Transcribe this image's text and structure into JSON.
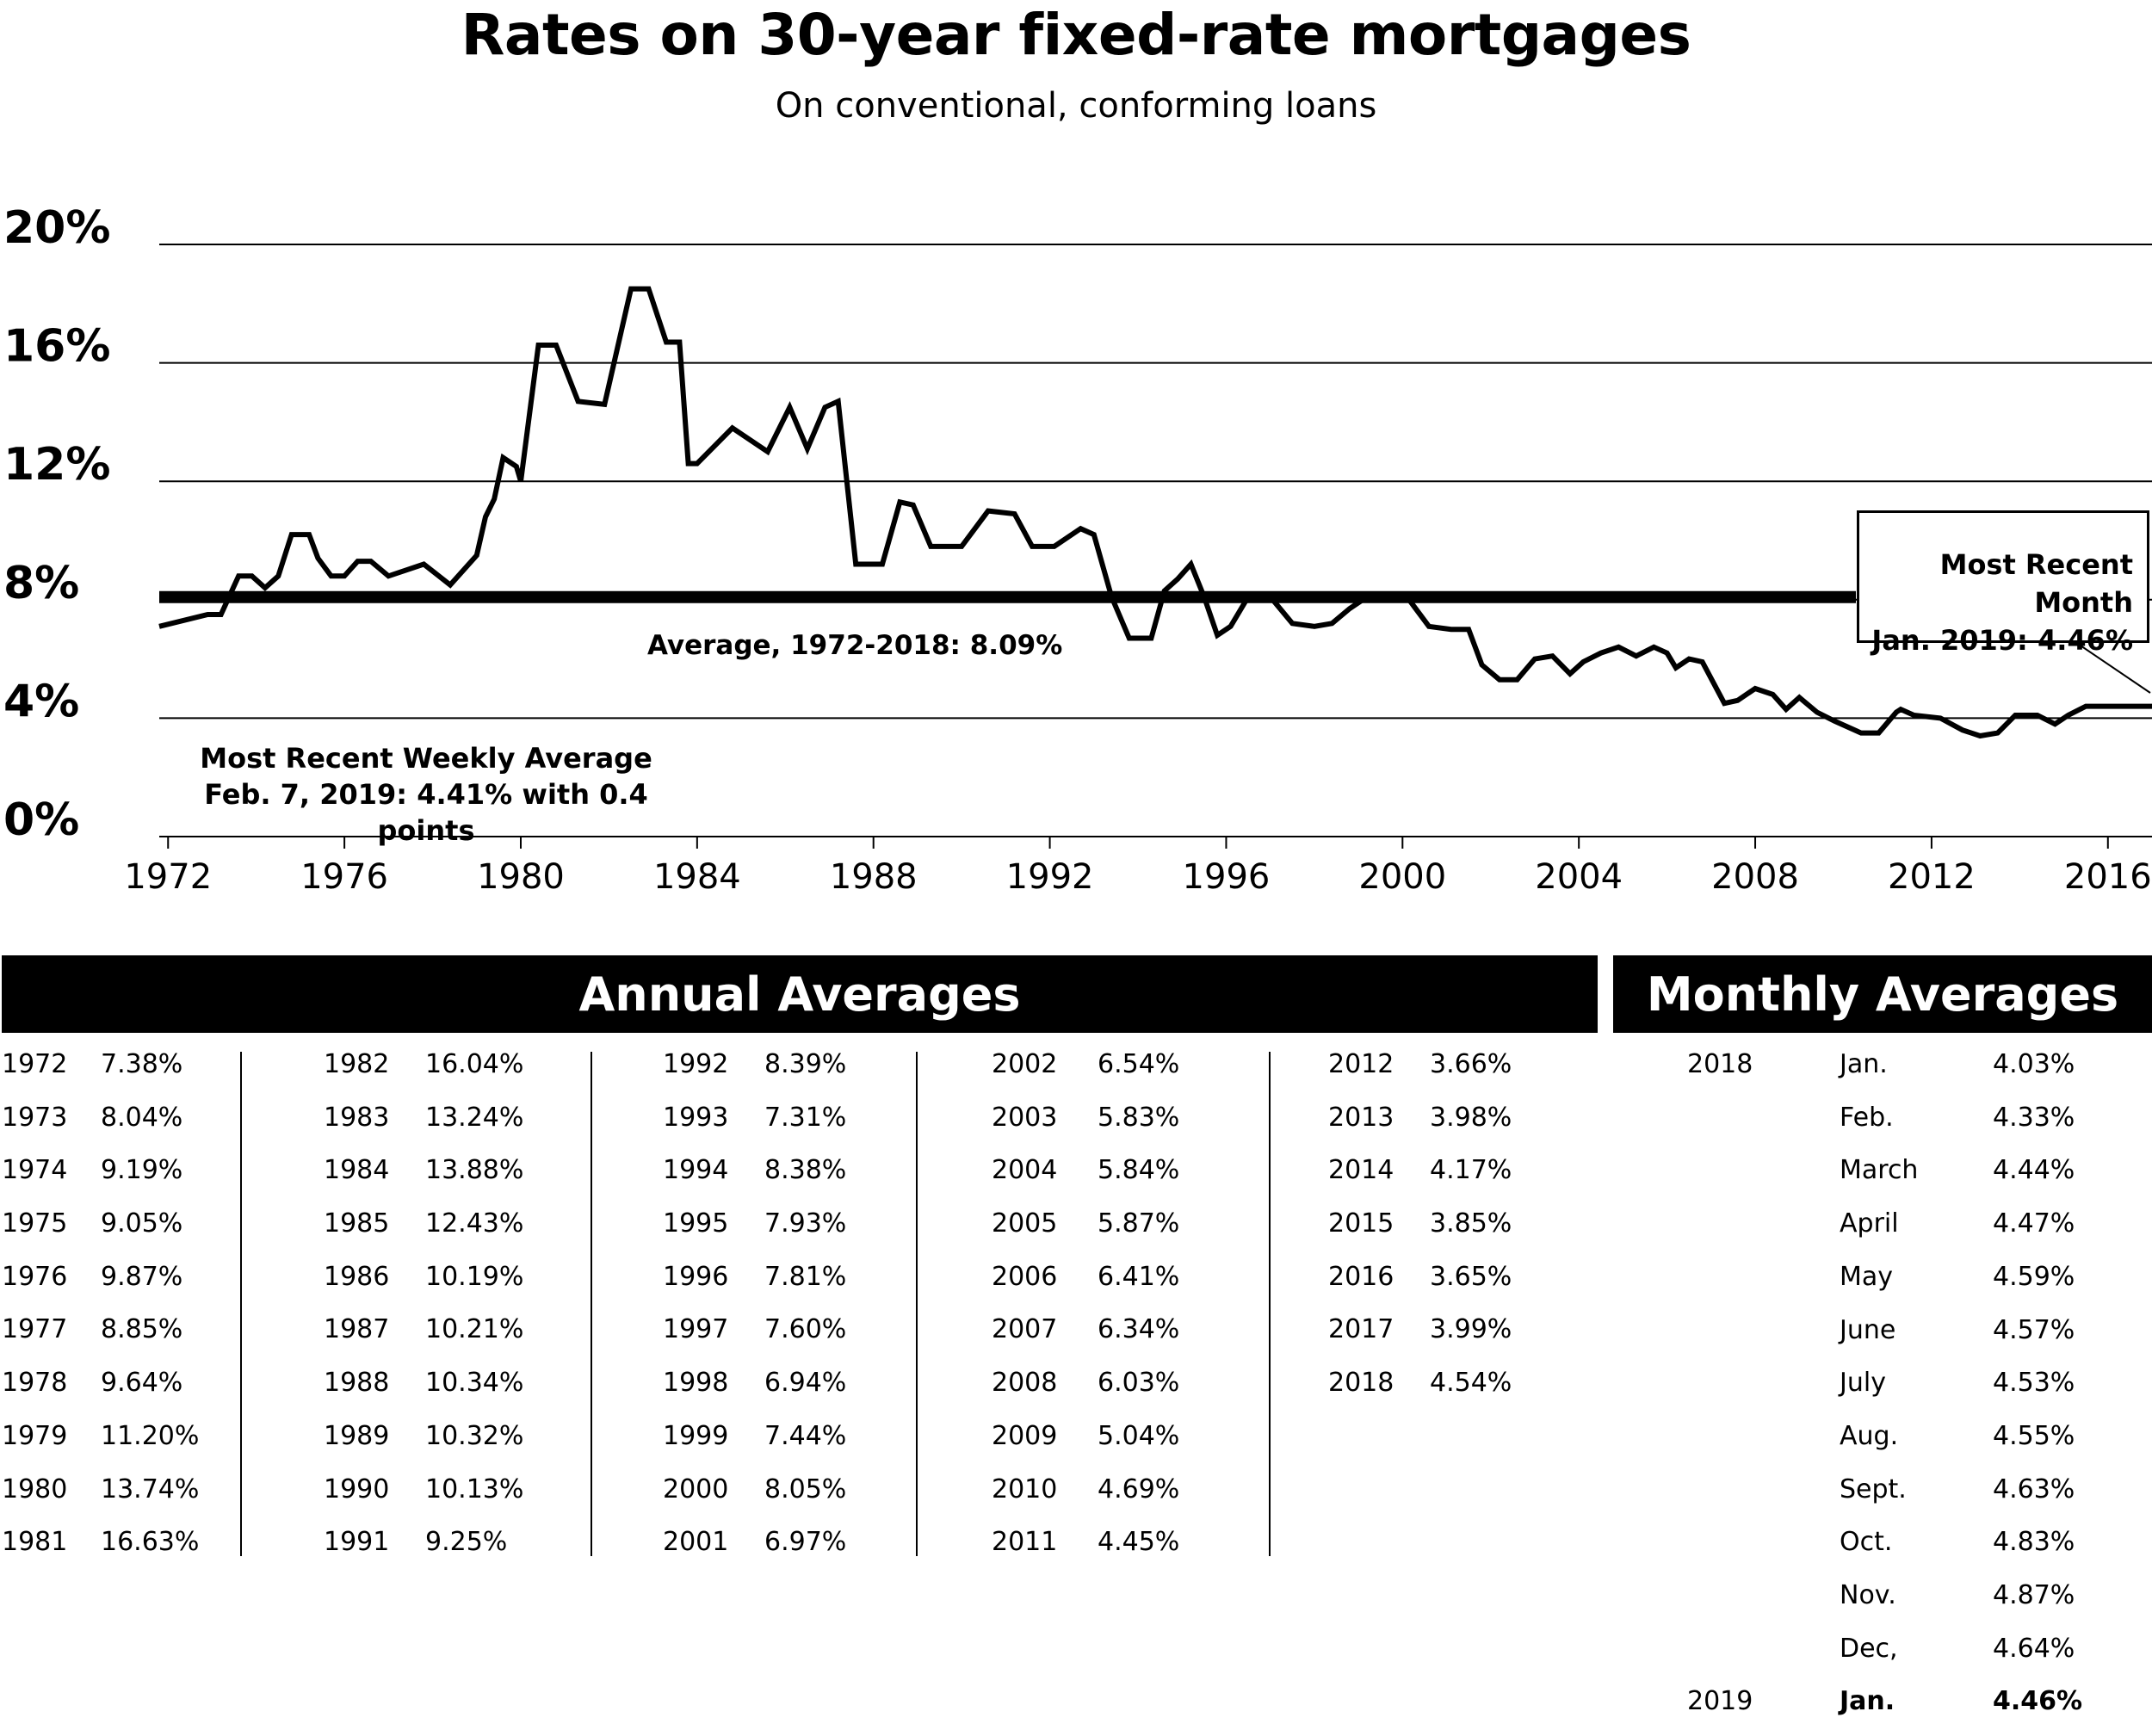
{
  "title": "Rates on 30-year fixed-rate mortgages",
  "subtitle": "On conventional, conforming loans",
  "callout": {
    "line1": "Most Recent Month",
    "line2": "Jan. 2019: 4.46%"
  },
  "average_label": "Average, 1972-2018: 8.09%",
  "weekly": {
    "line1": "Most Recent Weekly Average",
    "line2": "Feb. 7, 2019: 4.41% with 0.4 points"
  },
  "annual_header": "Annual Averages",
  "monthly_header": "Monthly Averages",
  "annual_columns": [
    [
      [
        "1972",
        "7.38%"
      ],
      [
        "1973",
        "8.04%"
      ],
      [
        "1974",
        "9.19%"
      ],
      [
        "1975",
        "9.05%"
      ],
      [
        "1976",
        "9.87%"
      ],
      [
        "1977",
        "8.85%"
      ],
      [
        "1978",
        "9.64%"
      ],
      [
        "1979",
        "11.20%"
      ],
      [
        "1980",
        "13.74%"
      ],
      [
        "1981",
        "16.63%"
      ]
    ],
    [
      [
        "1982",
        "16.04%"
      ],
      [
        "1983",
        "13.24%"
      ],
      [
        "1984",
        "13.88%"
      ],
      [
        "1985",
        "12.43%"
      ],
      [
        "1986",
        "10.19%"
      ],
      [
        "1987",
        "10.21%"
      ],
      [
        "1988",
        "10.34%"
      ],
      [
        "1989",
        "10.32%"
      ],
      [
        "1990",
        "10.13%"
      ],
      [
        "1991",
        "9.25%"
      ]
    ],
    [
      [
        "1992",
        "8.39%"
      ],
      [
        "1993",
        "7.31%"
      ],
      [
        "1994",
        "8.38%"
      ],
      [
        "1995",
        "7.93%"
      ],
      [
        "1996",
        "7.81%"
      ],
      [
        "1997",
        "7.60%"
      ],
      [
        "1998",
        "6.94%"
      ],
      [
        "1999",
        "7.44%"
      ],
      [
        "2000",
        "8.05%"
      ],
      [
        "2001",
        "6.97%"
      ]
    ],
    [
      [
        "2002",
        "6.54%"
      ],
      [
        "2003",
        "5.83%"
      ],
      [
        "2004",
        "5.84%"
      ],
      [
        "2005",
        "5.87%"
      ],
      [
        "2006",
        "6.41%"
      ],
      [
        "2007",
        "6.34%"
      ],
      [
        "2008",
        "6.03%"
      ],
      [
        "2009",
        "5.04%"
      ],
      [
        "2010",
        "4.69%"
      ],
      [
        "2011",
        "4.45%"
      ]
    ],
    [
      [
        "2012",
        "3.66%"
      ],
      [
        "2013",
        "3.98%"
      ],
      [
        "2014",
        "4.17%"
      ],
      [
        "2015",
        "3.85%"
      ],
      [
        "2016",
        "3.65%"
      ],
      [
        "2017",
        "3.99%"
      ],
      [
        "2018",
        "4.54%"
      ]
    ]
  ],
  "monthly_rows": [
    [
      "2018",
      "Jan.",
      "4.03%"
    ],
    [
      "",
      "Feb.",
      "4.33%"
    ],
    [
      "",
      "March",
      "4.44%"
    ],
    [
      "",
      "April",
      "4.47%"
    ],
    [
      "",
      "May",
      "4.59%"
    ],
    [
      "",
      "June",
      "4.57%"
    ],
    [
      "",
      "July",
      "4.53%"
    ],
    [
      "",
      "Aug.",
      "4.55%"
    ],
    [
      "",
      "Sept.",
      "4.63%"
    ],
    [
      "",
      "Oct.",
      "4.83%"
    ],
    [
      "",
      "Nov.",
      "4.87%"
    ],
    [
      "",
      "Dec,",
      "4.64%"
    ],
    [
      "2019",
      "Jan.",
      "4.46%"
    ]
  ],
  "chart_data": {
    "type": "line",
    "title": "Rates on 30-year fixed-rate mortgages",
    "subtitle": "On conventional, conforming loans",
    "xlabel": "",
    "ylabel": "",
    "ylim": [
      0,
      20
    ],
    "xlim": [
      1971.8,
      2017.0
    ],
    "yticks": [
      "0%",
      "4%",
      "8%",
      "12%",
      "16%",
      "20%"
    ],
    "xticks": [
      "1972",
      "1976",
      "1980",
      "1984",
      "1988",
      "1992",
      "1996",
      "2000",
      "2004",
      "2008",
      "2012",
      "2016"
    ],
    "grid": true,
    "reference_line": {
      "label": "Average, 1972-2018: 8.09%",
      "value": 8.09
    },
    "series": [
      {
        "x": [
          1971.8,
          1972.9,
          1973.2,
          1973.6,
          1973.9,
          1974.2,
          1974.5,
          1974.8,
          1975.2,
          1975.4,
          1975.7,
          1976.0,
          1976.3,
          1976.6,
          1977.0,
          1977.8,
          1978.4,
          1979.0,
          1979.2,
          1979.4,
          1979.6,
          1979.9,
          1980.0,
          1980.4,
          1980.8,
          1981.3,
          1981.9,
          1982.5,
          1982.9,
          1983.3,
          1983.6,
          1983.8,
          1984.0,
          1984.8,
          1985.6,
          1986.1,
          1986.5,
          1986.9,
          1987.2,
          1987.6,
          1988.2,
          1988.6,
          1988.9,
          1989.3,
          1990.0,
          1990.6,
          1991.2,
          1991.6,
          1992.1,
          1992.7,
          1993.0,
          1993.4,
          1993.8,
          1994.3,
          1994.6,
          1994.9,
          1995.2,
          1995.5,
          1995.8,
          1996.1,
          1996.5,
          1997.0,
          1997.5,
          1998.0,
          1998.4,
          1998.8,
          1999.2,
          1999.6,
          2000.1,
          2000.6,
          2001.1,
          2001.5,
          2001.8,
          2002.2,
          2002.6,
          2003.0,
          2003.4,
          2003.8,
          2004.1,
          2004.5,
          2004.9,
          2005.3,
          2005.7,
          2006.0,
          2006.2,
          2006.5,
          2006.8,
          2007.3,
          2007.6,
          2008.0,
          2008.4,
          2008.7,
          2009.0,
          2009.4,
          2009.8,
          2010.4,
          2010.8,
          2011.2,
          2011.3,
          2011.6,
          2012.2,
          2012.7,
          2013.1,
          2013.5,
          2013.9,
          2014.4,
          2014.8,
          2015.1,
          2015.5,
          2015.8,
          2016.1,
          2016.4,
          2016.6,
          2017.0
        ],
        "y": [
          7.1,
          7.5,
          7.5,
          8.8,
          8.8,
          8.4,
          8.8,
          10.2,
          10.2,
          9.4,
          8.8,
          8.8,
          9.3,
          9.3,
          8.8,
          9.2,
          8.5,
          9.5,
          10.8,
          11.4,
          12.8,
          12.5,
          12.0,
          16.6,
          16.6,
          14.7,
          14.6,
          18.5,
          18.5,
          16.7,
          16.7,
          12.6,
          12.6,
          13.8,
          13.0,
          14.5,
          13.1,
          14.5,
          14.7,
          9.2,
          9.2,
          11.3,
          11.2,
          9.8,
          9.8,
          11.0,
          10.9,
          9.8,
          9.8,
          10.4,
          10.2,
          8.1,
          6.7,
          6.7,
          8.3,
          8.7,
          9.2,
          8.1,
          6.8,
          7.1,
          8.1,
          8.1,
          7.2,
          7.1,
          7.2,
          7.7,
          8.1,
          8.1,
          8.1,
          7.1,
          7.0,
          7.0,
          5.8,
          5.3,
          5.3,
          6.0,
          6.1,
          5.5,
          5.9,
          6.2,
          6.4,
          6.1,
          6.4,
          6.2,
          5.7,
          6.0,
          5.9,
          4.5,
          4.6,
          5.0,
          4.8,
          4.3,
          4.7,
          4.2,
          3.9,
          3.5,
          3.5,
          4.2,
          4.3,
          4.1,
          4.0,
          3.6,
          3.4,
          3.5,
          4.1,
          4.1,
          3.8,
          4.1,
          4.4,
          4.4,
          4.4,
          4.4,
          4.4,
          4.4
        ]
      }
    ]
  }
}
